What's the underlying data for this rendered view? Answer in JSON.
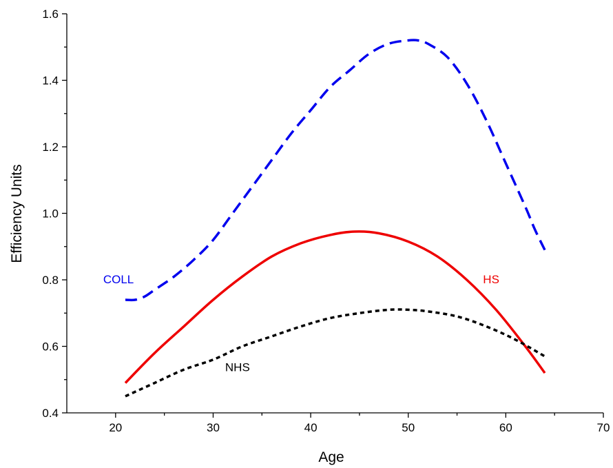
{
  "chart_data": {
    "type": "line",
    "title": "",
    "xlabel": "Age",
    "ylabel": "Efficiency Units",
    "xlim": [
      15,
      70
    ],
    "ylim": [
      0.4,
      1.6
    ],
    "xticks": [
      20,
      30,
      40,
      50,
      60,
      70
    ],
    "yticks": [
      0.4,
      0.6,
      0.8,
      1.0,
      1.2,
      1.4,
      1.6
    ],
    "ytick_labels": [
      "0.4",
      "0.6",
      "0.8",
      "1.0",
      "1.2",
      "1.4",
      "1.6"
    ],
    "grid": false,
    "legend": "none",
    "series": [
      {
        "name": "COLL",
        "color": "#0000ee",
        "style": "dashed",
        "x": [
          21,
          22,
          23,
          24,
          26,
          28,
          30,
          32,
          34,
          36,
          38,
          40,
          42,
          44,
          46,
          48,
          50,
          51,
          52,
          54,
          56,
          58,
          60,
          62,
          63,
          64
        ],
        "values": [
          0.74,
          0.74,
          0.75,
          0.77,
          0.81,
          0.86,
          0.92,
          1.0,
          1.08,
          1.16,
          1.24,
          1.31,
          1.38,
          1.43,
          1.48,
          1.51,
          1.52,
          1.52,
          1.51,
          1.47,
          1.39,
          1.28,
          1.15,
          1.02,
          0.95,
          0.89
        ]
      },
      {
        "name": "HS",
        "color": "#ee0000",
        "style": "solid",
        "x": [
          21,
          24,
          27,
          30,
          33,
          36,
          39,
          42,
          44.5,
          47,
          50,
          53,
          56,
          59,
          62,
          64
        ],
        "values": [
          0.49,
          0.58,
          0.66,
          0.74,
          0.81,
          0.87,
          0.91,
          0.935,
          0.945,
          0.94,
          0.915,
          0.87,
          0.8,
          0.71,
          0.6,
          0.52
        ]
      },
      {
        "name": "NHS",
        "color": "#000000",
        "style": "dotted",
        "x": [
          21,
          24,
          27,
          30,
          33,
          36,
          39,
          42,
          45,
          48,
          50,
          52,
          55,
          58,
          61,
          64
        ],
        "values": [
          0.45,
          0.49,
          0.53,
          0.56,
          0.6,
          0.63,
          0.66,
          0.685,
          0.7,
          0.71,
          0.71,
          0.705,
          0.69,
          0.66,
          0.62,
          0.57
        ]
      }
    ],
    "annotations": [
      {
        "text": "COLL",
        "x": 20.3,
        "y": 0.79,
        "color": "#0000ee"
      },
      {
        "text": "HS",
        "x": 58.5,
        "y": 0.79,
        "color": "#ee0000"
      },
      {
        "text": "NHS",
        "x": 32.5,
        "y": 0.525,
        "color": "#000000"
      }
    ]
  }
}
